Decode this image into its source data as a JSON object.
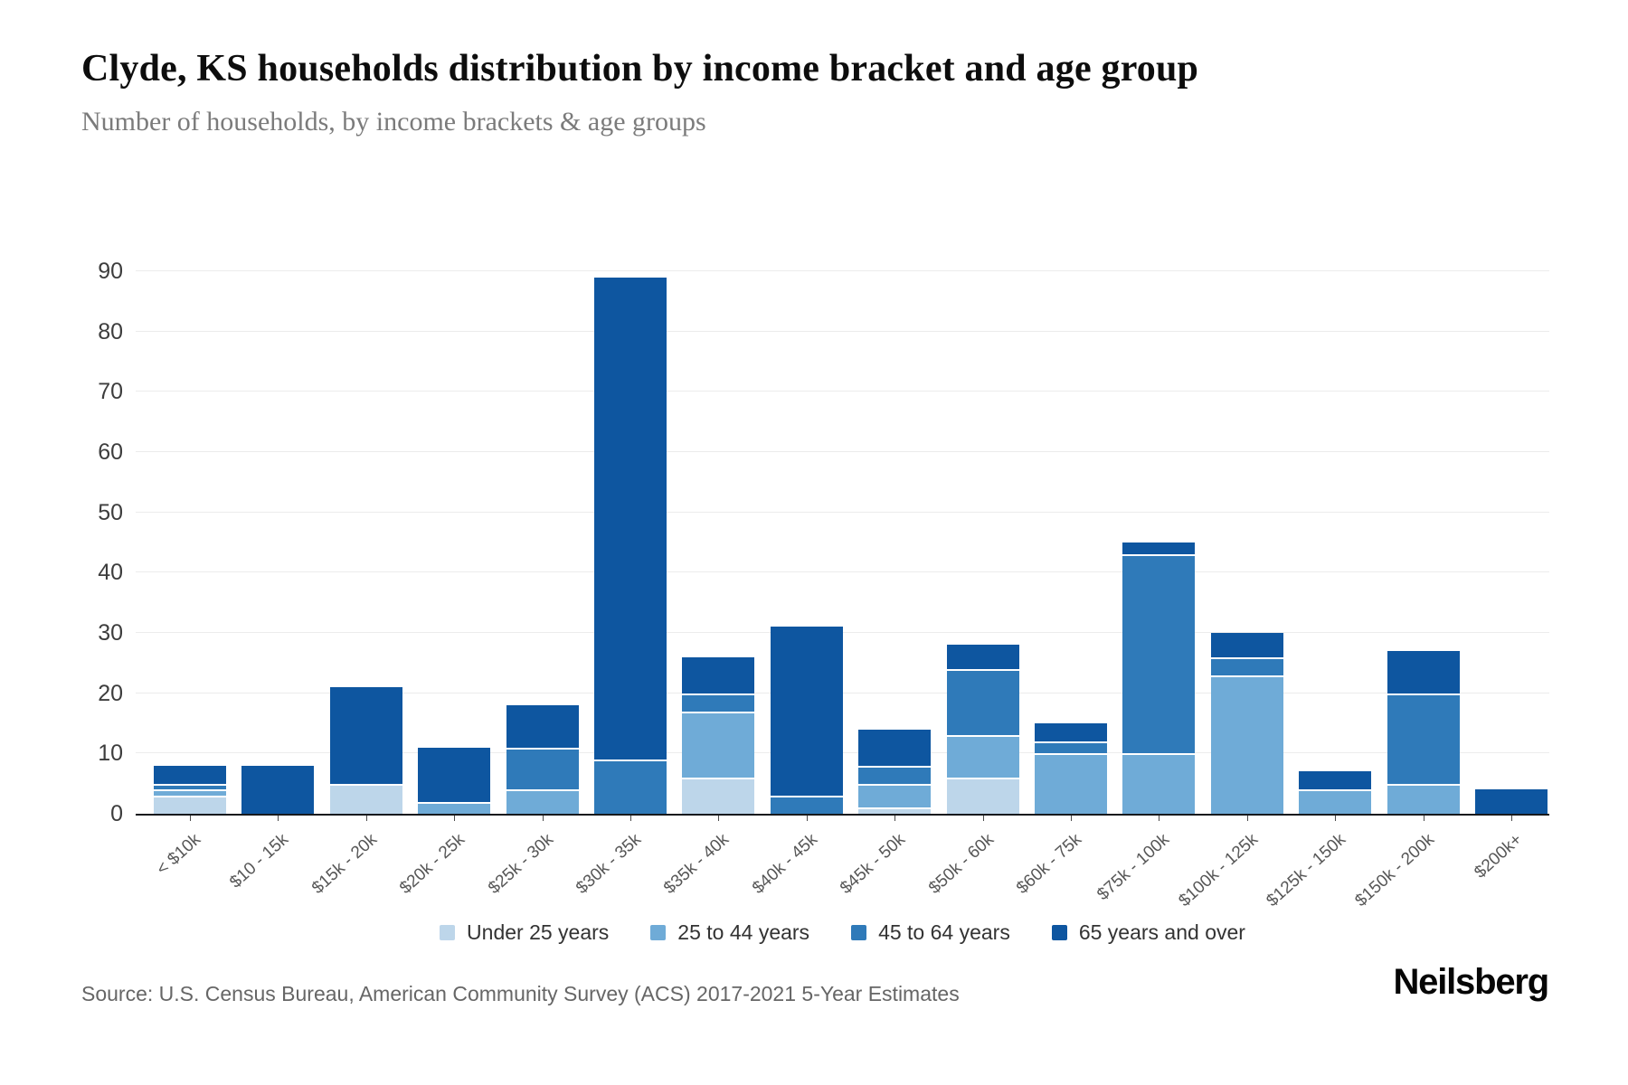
{
  "header": {
    "title": "Clyde, KS households distribution by income bracket and age group",
    "subtitle": "Number of households, by income brackets & age groups"
  },
  "chart_data": {
    "type": "bar",
    "stacked": true,
    "title": "Clyde, KS households distribution by income bracket and age group",
    "xlabel": "",
    "ylabel": "",
    "ylim": [
      0,
      90
    ],
    "yticks": [
      0,
      10,
      20,
      30,
      40,
      50,
      60,
      70,
      80,
      90
    ],
    "grid": "horizontal",
    "legend_position": "bottom",
    "categories": [
      "< $10k",
      "$10 - 15k",
      "$15k - 20k",
      "$20k - 25k",
      "$25k - 30k",
      "$30k - 35k",
      "$35k - 40k",
      "$40k - 45k",
      "$45k - 50k",
      "$50k - 60k",
      "$60k - 75k",
      "$75k - 100k",
      "$100k - 125k",
      "$125k - 150k",
      "$150k - 200k",
      "$200k+"
    ],
    "series": [
      {
        "name": "Under 25 years",
        "color": "#bdd6ea",
        "values": [
          3,
          0,
          5,
          0,
          0,
          0,
          6,
          0,
          1,
          6,
          0,
          0,
          0,
          0,
          0,
          0
        ]
      },
      {
        "name": "25 to 44 years",
        "color": "#6fabd7",
        "values": [
          1,
          0,
          0,
          2,
          4,
          0,
          11,
          0,
          4,
          7,
          10,
          10,
          23,
          4,
          5,
          0
        ]
      },
      {
        "name": "45 to 64 years",
        "color": "#2f7ab9",
        "values": [
          1,
          0,
          0,
          0,
          7,
          9,
          3,
          3,
          3,
          11,
          2,
          33,
          3,
          0,
          15,
          0
        ]
      },
      {
        "name": "65 years and over",
        "color": "#0e56a0",
        "values": [
          3,
          8,
          16,
          9,
          7,
          80,
          6,
          28,
          6,
          4,
          3,
          2,
          4,
          3,
          7,
          4
        ]
      }
    ],
    "totals": [
      8,
      8,
      21,
      11,
      18,
      89,
      26,
      31,
      14,
      28,
      15,
      45,
      30,
      7,
      27,
      4
    ]
  },
  "footer": {
    "source": "Source: U.S. Census Bureau, American Community Survey (ACS) 2017-2021 5-Year Estimates",
    "brand": "Neilsberg"
  }
}
